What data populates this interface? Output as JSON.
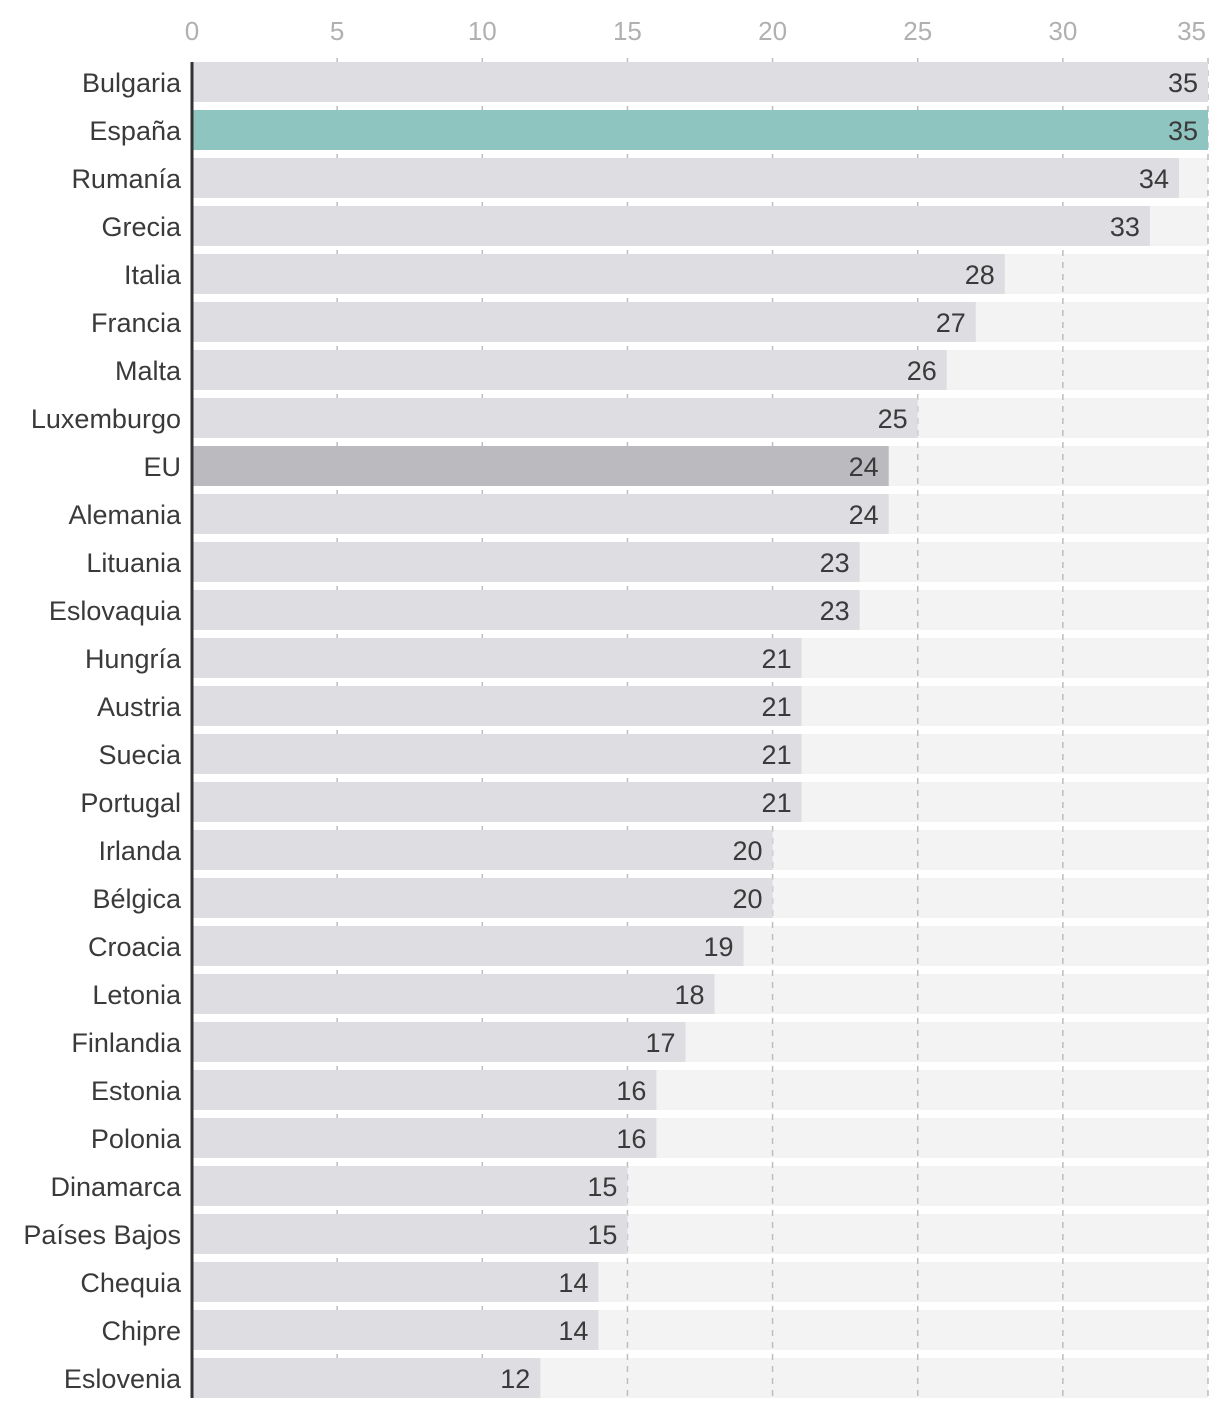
{
  "chart_data": {
    "type": "bar",
    "orientation": "horizontal",
    "title": "",
    "xlabel": "",
    "ylabel": "",
    "xlim": [
      0,
      35
    ],
    "ticks": [
      0,
      5,
      10,
      15,
      20,
      25,
      30,
      35
    ],
    "categories": [
      "Bulgaria",
      "España",
      "Rumanía",
      "Grecia",
      "Italia",
      "Francia",
      "Malta",
      "Luxemburgo",
      "EU",
      "Alemania",
      "Lituania",
      "Eslovaquia",
      "Hungría",
      "Austria",
      "Suecia",
      "Portugal",
      "Irlanda",
      "Bélgica",
      "Croacia",
      "Letonia",
      "Finlandia",
      "Estonia",
      "Polonia",
      "Dinamarca",
      "Países Bajos",
      "Chequia",
      "Chipre",
      "Eslovenia"
    ],
    "values": [
      35,
      35,
      34,
      33,
      28,
      27,
      26,
      25,
      24,
      24,
      23,
      23,
      21,
      21,
      21,
      21,
      20,
      20,
      19,
      18,
      17,
      16,
      16,
      15,
      15,
      14,
      14,
      12
    ],
    "highlight": {
      "España": "#8fc5c1",
      "EU": "#bbbabe"
    },
    "colors": {
      "bar": "#dedde1",
      "track": "#f3f3f3",
      "axis": "#333333",
      "grid": "#bdbdbd",
      "text": "#3a3a3a",
      "tick_text": "#b0b0b0"
    }
  }
}
